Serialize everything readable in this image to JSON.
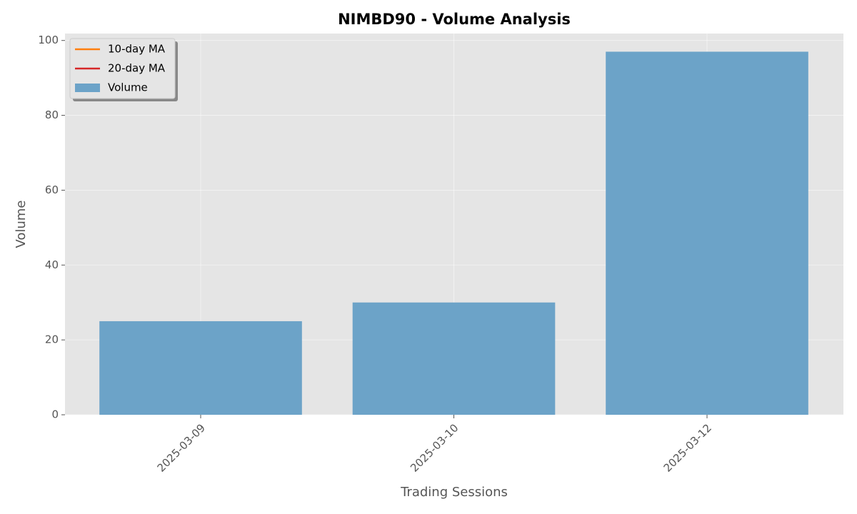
{
  "chart_data": {
    "type": "bar",
    "title": "NIMBD90 - Volume Analysis",
    "x_label": "Trading Sessions",
    "y_label": "Volume",
    "categories": [
      "2025-03-09",
      "2025-03-10",
      "2025-03-12"
    ],
    "series": [
      {
        "name": "10-day MA",
        "type": "line",
        "color": "#ff7f0e",
        "values": [
          null,
          null,
          null
        ]
      },
      {
        "name": "20-day MA",
        "type": "line",
        "color": "#d62728",
        "values": [
          null,
          null,
          null
        ]
      },
      {
        "name": "Volume",
        "type": "bar",
        "color": "#6ca3c8",
        "values": [
          25,
          30,
          97
        ]
      }
    ],
    "ylim": [
      0,
      101.85
    ],
    "yticks": [
      0,
      20,
      40,
      60,
      80,
      100
    ],
    "grid": true,
    "legend": "upper left"
  }
}
